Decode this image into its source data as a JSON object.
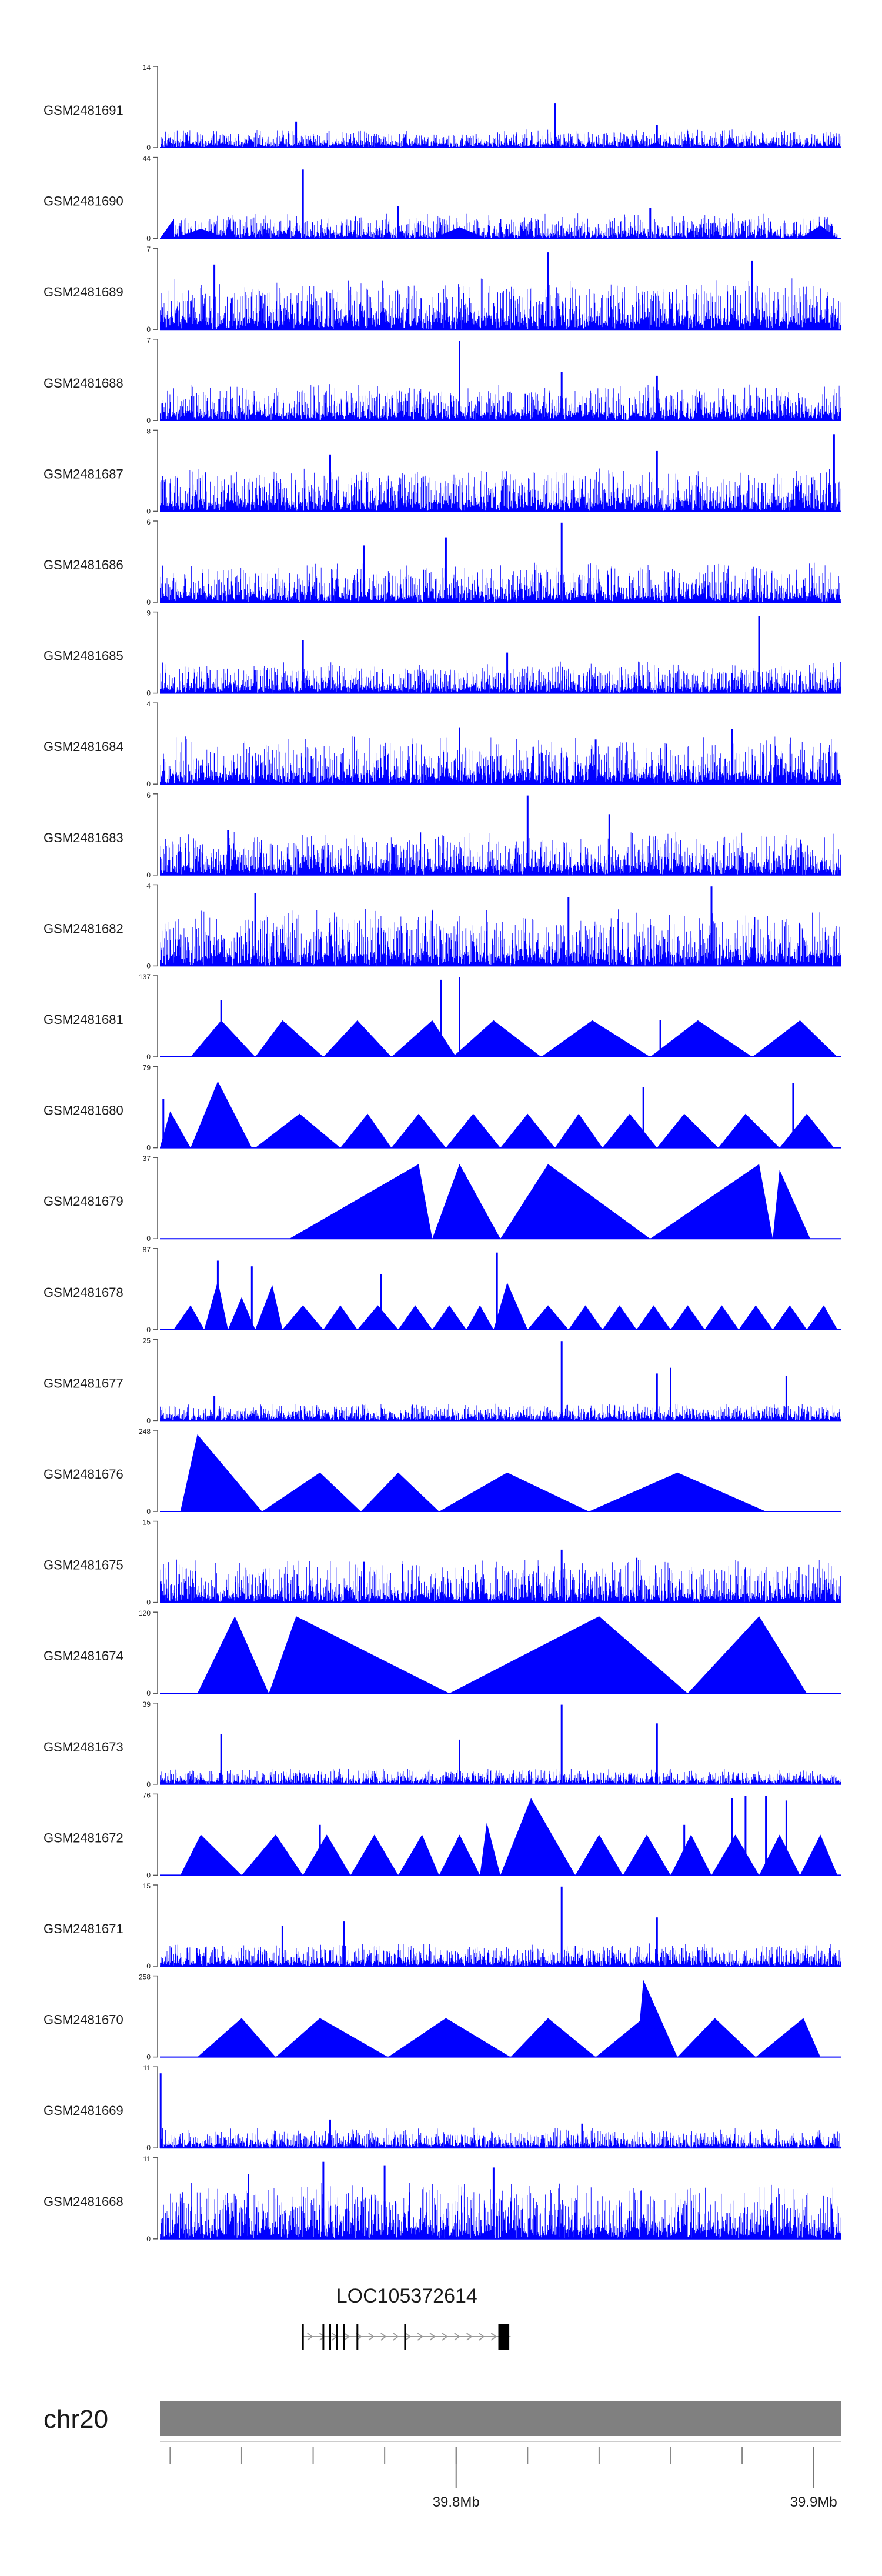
{
  "chart_data": {
    "type": "area",
    "title": "",
    "track_color": "#0000ff",
    "tracks": [
      {
        "name": "GSM2481691",
        "ymax": "14",
        "ymin": "0",
        "style": "signal",
        "base": 0.06,
        "noise": 0.16,
        "spikes": [
          [
            0.58,
            0.55
          ],
          [
            0.2,
            0.32
          ],
          [
            0.73,
            0.28
          ]
        ]
      },
      {
        "name": "GSM2481690",
        "ymax": "44",
        "ymin": "0",
        "style": "mixed",
        "base": 0.06,
        "noise": 0.22,
        "spikes": [
          [
            0.21,
            0.85
          ],
          [
            0.72,
            0.38
          ],
          [
            0.35,
            0.4
          ]
        ],
        "triangles": [
          [
            0.02,
            0.06,
            0.1,
            0.12
          ],
          [
            0.4,
            0.44,
            0.48,
            0.14
          ],
          [
            0.94,
            0.97,
            0.995,
            0.16
          ]
        ]
      },
      {
        "name": "GSM2481689",
        "ymax": "7",
        "ymin": "0",
        "style": "signal",
        "base": 0.15,
        "noise": 0.45,
        "spikes": [
          [
            0.57,
            0.95
          ],
          [
            0.87,
            0.85
          ],
          [
            0.08,
            0.8
          ]
        ]
      },
      {
        "name": "GSM2481688",
        "ymax": "7",
        "ymin": "0",
        "style": "signal",
        "base": 0.1,
        "noise": 0.32,
        "spikes": [
          [
            0.44,
            0.98
          ],
          [
            0.59,
            0.6
          ],
          [
            0.73,
            0.55
          ]
        ]
      },
      {
        "name": "GSM2481687",
        "ymax": "8",
        "ymin": "0",
        "style": "signal",
        "base": 0.12,
        "noise": 0.38,
        "spikes": [
          [
            0.99,
            0.95
          ],
          [
            0.73,
            0.75
          ],
          [
            0.25,
            0.7
          ]
        ]
      },
      {
        "name": "GSM2481686",
        "ymax": "6",
        "ymin": "0",
        "style": "signal",
        "base": 0.1,
        "noise": 0.35,
        "spikes": [
          [
            0.59,
            0.98
          ],
          [
            0.42,
            0.8
          ],
          [
            0.3,
            0.7
          ]
        ]
      },
      {
        "name": "GSM2481685",
        "ymax": "9",
        "ymin": "0",
        "style": "signal",
        "base": 0.08,
        "noise": 0.28,
        "spikes": [
          [
            0.88,
            0.95
          ],
          [
            0.21,
            0.65
          ],
          [
            0.51,
            0.5
          ]
        ]
      },
      {
        "name": "GSM2481684",
        "ymax": "4",
        "ymin": "0",
        "style": "signal",
        "base": 0.12,
        "noise": 0.42,
        "spikes": [
          [
            0.44,
            0.7
          ],
          [
            0.84,
            0.68
          ],
          [
            0.64,
            0.55
          ]
        ]
      },
      {
        "name": "GSM2481683",
        "ymax": "6",
        "ymin": "0",
        "style": "signal",
        "base": 0.12,
        "noise": 0.38,
        "spikes": [
          [
            0.54,
            0.98
          ],
          [
            0.66,
            0.75
          ],
          [
            0.1,
            0.55
          ]
        ]
      },
      {
        "name": "GSM2481682",
        "ymax": "4",
        "ymin": "0",
        "style": "signal",
        "base": 0.15,
        "noise": 0.5,
        "spikes": [
          [
            0.81,
            0.98
          ],
          [
            0.14,
            0.9
          ],
          [
            0.6,
            0.85
          ]
        ]
      },
      {
        "name": "GSM2481681",
        "ymax": "137",
        "ymin": "0",
        "style": "triangles",
        "triangles": [
          [
            0.045,
            0.09,
            0.14,
            0.45
          ],
          [
            0.14,
            0.18,
            0.24,
            0.45
          ],
          [
            0.24,
            0.29,
            0.34,
            0.45
          ],
          [
            0.34,
            0.4,
            0.435,
            0.45
          ],
          [
            0.43,
            0.49,
            0.56,
            0.45
          ],
          [
            0.56,
            0.635,
            0.72,
            0.45
          ],
          [
            0.72,
            0.79,
            0.87,
            0.45
          ],
          [
            0.87,
            0.94,
            0.995,
            0.45
          ]
        ],
        "spikes": [
          [
            0.09,
            0.7
          ],
          [
            0.413,
            0.95
          ],
          [
            0.44,
            0.98
          ],
          [
            0.185,
            0.42
          ],
          [
            0.735,
            0.45
          ]
        ]
      },
      {
        "name": "GSM2481680",
        "ymax": "79",
        "ymin": "0",
        "style": "triangles",
        "triangles": [
          [
            0.0,
            0.015,
            0.045,
            0.45
          ],
          [
            0.045,
            0.085,
            0.135,
            0.82
          ],
          [
            0.14,
            0.205,
            0.265,
            0.42
          ],
          [
            0.265,
            0.305,
            0.34,
            0.42
          ],
          [
            0.34,
            0.38,
            0.42,
            0.42
          ],
          [
            0.42,
            0.46,
            0.5,
            0.42
          ],
          [
            0.5,
            0.54,
            0.58,
            0.42
          ],
          [
            0.58,
            0.615,
            0.65,
            0.42
          ],
          [
            0.65,
            0.69,
            0.73,
            0.42
          ],
          [
            0.73,
            0.77,
            0.82,
            0.42
          ],
          [
            0.82,
            0.86,
            0.91,
            0.42
          ],
          [
            0.91,
            0.95,
            0.99,
            0.42
          ]
        ],
        "spikes": [
          [
            0.71,
            0.75
          ],
          [
            0.93,
            0.8
          ],
          [
            0.005,
            0.6
          ]
        ]
      },
      {
        "name": "GSM2481679",
        "ymax": "37",
        "ymin": "0",
        "style": "triangles",
        "triangles": [
          [
            0.19,
            0.38,
            0.4,
            0.92
          ],
          [
            0.4,
            0.44,
            0.5,
            0.92
          ],
          [
            0.5,
            0.57,
            0.72,
            0.92
          ],
          [
            0.72,
            0.88,
            0.9,
            0.92
          ],
          [
            0.9,
            0.91,
            0.955,
            0.85
          ]
        ],
        "spikes": []
      },
      {
        "name": "GSM2481678",
        "ymax": "87",
        "ymin": "0",
        "style": "triangles",
        "triangles": [
          [
            0.02,
            0.045,
            0.065,
            0.3
          ],
          [
            0.065,
            0.085,
            0.1,
            0.6
          ],
          [
            0.1,
            0.12,
            0.14,
            0.4
          ],
          [
            0.14,
            0.165,
            0.18,
            0.55
          ],
          [
            0.18,
            0.21,
            0.24,
            0.3
          ],
          [
            0.24,
            0.265,
            0.29,
            0.3
          ],
          [
            0.29,
            0.32,
            0.35,
            0.3
          ],
          [
            0.35,
            0.375,
            0.4,
            0.3
          ],
          [
            0.4,
            0.425,
            0.45,
            0.3
          ],
          [
            0.45,
            0.47,
            0.49,
            0.3
          ],
          [
            0.49,
            0.51,
            0.54,
            0.58
          ],
          [
            0.54,
            0.57,
            0.6,
            0.3
          ],
          [
            0.6,
            0.625,
            0.65,
            0.3
          ],
          [
            0.65,
            0.675,
            0.7,
            0.3
          ],
          [
            0.7,
            0.725,
            0.75,
            0.3
          ],
          [
            0.75,
            0.775,
            0.8,
            0.3
          ],
          [
            0.8,
            0.825,
            0.85,
            0.3
          ],
          [
            0.85,
            0.875,
            0.9,
            0.3
          ],
          [
            0.9,
            0.925,
            0.95,
            0.3
          ],
          [
            0.95,
            0.975,
            0.995,
            0.3
          ]
        ],
        "spikes": [
          [
            0.085,
            0.85
          ],
          [
            0.135,
            0.78
          ],
          [
            0.325,
            0.68
          ],
          [
            0.495,
            0.95
          ]
        ]
      },
      {
        "name": "GSM2481677",
        "ymax": "25",
        "ymin": "0",
        "style": "signal",
        "base": 0.06,
        "noise": 0.15,
        "spikes": [
          [
            0.59,
            0.98
          ],
          [
            0.75,
            0.65
          ],
          [
            0.73,
            0.58
          ],
          [
            0.92,
            0.55
          ],
          [
            0.08,
            0.3
          ]
        ]
      },
      {
        "name": "GSM2481676",
        "ymax": "248",
        "ymin": "0",
        "style": "triangles",
        "triangles": [
          [
            0.03,
            0.055,
            0.15,
            0.95
          ],
          [
            0.15,
            0.235,
            0.295,
            0.48
          ],
          [
            0.295,
            0.35,
            0.41,
            0.48
          ],
          [
            0.41,
            0.51,
            0.63,
            0.48
          ],
          [
            0.63,
            0.76,
            0.89,
            0.48
          ]
        ],
        "spikes": []
      },
      {
        "name": "GSM2481675",
        "ymax": "15",
        "ymin": "0",
        "style": "signal",
        "base": 0.1,
        "noise": 0.38,
        "spikes": [
          [
            0.59,
            0.65
          ],
          [
            0.7,
            0.55
          ],
          [
            0.3,
            0.5
          ]
        ]
      },
      {
        "name": "GSM2481674",
        "ymax": "120",
        "ymin": "0",
        "style": "triangles",
        "triangles": [
          [
            0.055,
            0.11,
            0.16,
            0.95
          ],
          [
            0.16,
            0.2,
            0.425,
            0.95
          ],
          [
            0.425,
            0.645,
            0.775,
            0.95
          ],
          [
            0.775,
            0.88,
            0.95,
            0.95
          ]
        ],
        "spikes": []
      },
      {
        "name": "GSM2481673",
        "ymax": "39",
        "ymin": "0",
        "style": "signal",
        "base": 0.05,
        "noise": 0.14,
        "spikes": [
          [
            0.59,
            0.98
          ],
          [
            0.73,
            0.75
          ],
          [
            0.09,
            0.62
          ],
          [
            0.44,
            0.55
          ]
        ]
      },
      {
        "name": "GSM2481672",
        "ymax": "76",
        "ymin": "0",
        "style": "triangles",
        "triangles": [
          [
            0.03,
            0.06,
            0.12,
            0.5
          ],
          [
            0.12,
            0.17,
            0.21,
            0.5
          ],
          [
            0.21,
            0.245,
            0.28,
            0.5
          ],
          [
            0.28,
            0.315,
            0.35,
            0.5
          ],
          [
            0.35,
            0.385,
            0.41,
            0.5
          ],
          [
            0.41,
            0.44,
            0.47,
            0.5
          ],
          [
            0.47,
            0.48,
            0.5,
            0.65
          ],
          [
            0.5,
            0.545,
            0.61,
            0.95
          ],
          [
            0.61,
            0.645,
            0.68,
            0.5
          ],
          [
            0.68,
            0.715,
            0.75,
            0.5
          ],
          [
            0.75,
            0.78,
            0.81,
            0.5
          ],
          [
            0.81,
            0.845,
            0.88,
            0.5
          ],
          [
            0.88,
            0.91,
            0.94,
            0.5
          ],
          [
            0.94,
            0.97,
            0.995,
            0.5
          ]
        ],
        "spikes": [
          [
            0.235,
            0.62
          ],
          [
            0.77,
            0.62
          ],
          [
            0.84,
            0.95
          ],
          [
            0.86,
            0.98
          ],
          [
            0.89,
            0.98
          ],
          [
            0.92,
            0.92
          ]
        ]
      },
      {
        "name": "GSM2481671",
        "ymax": "15",
        "ymin": "0",
        "style": "signal",
        "base": 0.06,
        "noise": 0.2,
        "spikes": [
          [
            0.59,
            0.98
          ],
          [
            0.73,
            0.6
          ],
          [
            0.27,
            0.55
          ],
          [
            0.18,
            0.5
          ]
        ]
      },
      {
        "name": "GSM2481670",
        "ymax": "258",
        "ymin": "0",
        "style": "triangles",
        "triangles": [
          [
            0.055,
            0.12,
            0.17,
            0.48
          ],
          [
            0.17,
            0.235,
            0.335,
            0.48
          ],
          [
            0.335,
            0.42,
            0.515,
            0.48
          ],
          [
            0.515,
            0.57,
            0.64,
            0.48
          ],
          [
            0.64,
            0.71,
            0.76,
            0.48
          ],
          [
            0.7,
            0.71,
            0.76,
            0.95
          ],
          [
            0.76,
            0.815,
            0.875,
            0.48
          ],
          [
            0.875,
            0.945,
            0.97,
            0.48
          ]
        ],
        "spikes": []
      },
      {
        "name": "GSM2481669",
        "ymax": "11",
        "ymin": "0",
        "style": "signal",
        "base": 0.05,
        "noise": 0.18,
        "spikes": [
          [
            0.001,
            0.92
          ],
          [
            0.25,
            0.35
          ],
          [
            0.62,
            0.3
          ]
        ]
      },
      {
        "name": "GSM2481668",
        "ymax": "11",
        "ymin": "0",
        "style": "signal",
        "base": 0.15,
        "noise": 0.5,
        "spikes": [
          [
            0.24,
            0.95
          ],
          [
            0.33,
            0.9
          ],
          [
            0.49,
            0.88
          ],
          [
            0.13,
            0.8
          ]
        ]
      }
    ],
    "gene": {
      "label": "LOC105372614",
      "start_frac": 0.21,
      "end_frac": 0.515,
      "exons": [
        0.21,
        0.24,
        0.25,
        0.26,
        0.27,
        0.29,
        0.36,
        0.5,
        0.505,
        0.51
      ]
    },
    "ideogram": {
      "chromosome": "chr20",
      "color": "#808080"
    },
    "x_axis": {
      "minor_tick_fracs": [
        0.015,
        0.12,
        0.225,
        0.33,
        0.435,
        0.54,
        0.645,
        0.75,
        0.855,
        0.96
      ],
      "major_ticks": [
        {
          "frac": 0.435,
          "label": "39.8Mb"
        },
        {
          "frac": 0.96,
          "label": "39.9Mb"
        }
      ]
    }
  }
}
